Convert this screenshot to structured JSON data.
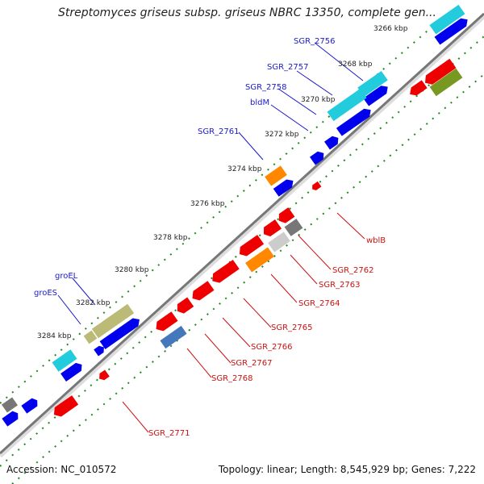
{
  "header": {
    "title": "Streptomyces griseus subsp. griseus NBRC 13350, complete gen..."
  },
  "footer": {
    "accession": "Accession: NC_010572",
    "summary": "Topology: linear; Length: 8,545,929 bp; Genes: 7,222"
  },
  "ticks": [
    "3266 kbp",
    "3268 kbp",
    "3270 kbp",
    "3272 kbp",
    "3274 kbp",
    "3276 kbp",
    "3278 kbp",
    "3280 kbp",
    "3282 kbp",
    "3284 kbp"
  ],
  "genes_top": [
    "SGR_2756",
    "SGR_2757",
    "SGR_2758",
    "bldM",
    "SGR_2761",
    "groEL",
    "groES"
  ],
  "genes_bottom": [
    "wblB",
    "SGR_2762",
    "SGR_2763",
    "SGR_2764",
    "SGR_2765",
    "SGR_2766",
    "SGR_2767",
    "SGR_2768",
    "SGR_2771"
  ],
  "colors": {
    "backbone": "#888888",
    "dots": "#228822",
    "blue": "#0000ee",
    "red": "#ee0000",
    "cyan": "#22ccdd",
    "orange": "#ff8800",
    "olive": "#bbbb77",
    "darkolive": "#779922",
    "gray": "#777777",
    "lightgray": "#cccccc"
  }
}
